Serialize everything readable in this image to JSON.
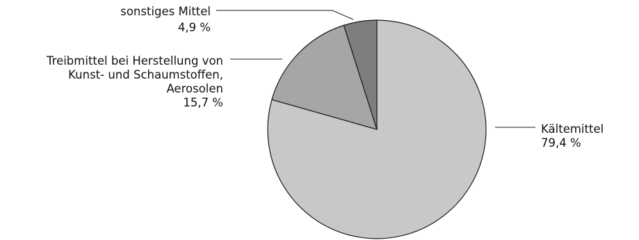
{
  "chart_data": {
    "type": "pie",
    "start_angle_deg": 0,
    "direction": "clockwise",
    "slices": [
      {
        "name": "Kältemittel",
        "value": 79.4,
        "value_label": "79,4 %",
        "label_lines": [
          "Kältemittel"
        ],
        "color": "#c8c8c9"
      },
      {
        "name": "Treibmittel bei Herstellung von Kunst- und Schaumstoffen, Aerosolen",
        "value": 15.7,
        "value_label": "15,7 %",
        "label_lines": [
          "Treibmittel bei Herstellung von",
          "Kunst- und Schaumstoffen,",
          "Aerosolen"
        ],
        "color": "#a5a6a8"
      },
      {
        "name": "sonstiges Mittel",
        "value": 4.9,
        "value_label": "4,9 %",
        "label_lines": [
          "sonstiges Mittel"
        ],
        "color": "#7d7e80"
      }
    ]
  }
}
